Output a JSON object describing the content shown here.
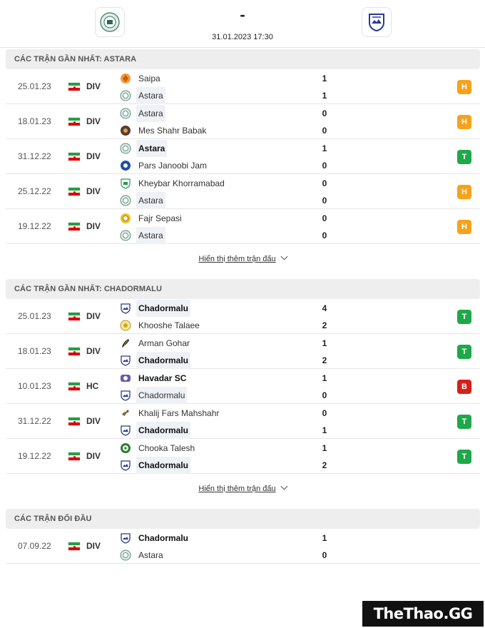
{
  "header": {
    "score": "-",
    "kickoff": "31.01.2023 17:30",
    "home_logo_icon": "astara-crest-icon",
    "away_logo_icon": "chadormalu-crest-icon"
  },
  "sections": [
    {
      "title": "CÁC TRẬN GẦN NHẤT: ASTARA",
      "matches": [
        {
          "date": "25.01.23",
          "comp": "DIV",
          "home": "Saipa",
          "home_score": "1",
          "away": "Astara",
          "away_score": "1",
          "result": "H"
        },
        {
          "date": "18.01.23",
          "comp": "DIV",
          "home": "Astara",
          "home_score": "0",
          "away": "Mes Shahr Babak",
          "away_score": "0",
          "result": "H"
        },
        {
          "date": "31.12.22",
          "comp": "DIV",
          "home": "Astara",
          "home_score": "1",
          "away": "Pars Janoobi Jam",
          "away_score": "0",
          "result": "T"
        },
        {
          "date": "25.12.22",
          "comp": "DIV",
          "home": "Kheybar Khorramabad",
          "home_score": "0",
          "away": "Astara",
          "away_score": "0",
          "result": "H"
        },
        {
          "date": "19.12.22",
          "comp": "DIV",
          "home": "Fajr Sepasi",
          "home_score": "0",
          "away": "Astara",
          "away_score": "0",
          "result": "H"
        }
      ],
      "more_label": "Hiển thị thêm trận đấu"
    },
    {
      "title": "CÁC TRẬN GẦN NHẤT: CHADORMALU",
      "matches": [
        {
          "date": "25.01.23",
          "comp": "DIV",
          "home": "Chadormalu",
          "home_score": "4",
          "away": "Khooshe Talaee",
          "away_score": "2",
          "result": "T"
        },
        {
          "date": "18.01.23",
          "comp": "DIV",
          "home": "Arman Gohar",
          "home_score": "1",
          "away": "Chadormalu",
          "away_score": "2",
          "result": "T"
        },
        {
          "date": "10.01.23",
          "comp": "HC",
          "home": "Havadar SC",
          "home_score": "1",
          "away": "Chadormalu",
          "away_score": "0",
          "result": "B"
        },
        {
          "date": "31.12.22",
          "comp": "DIV",
          "home": "Khalij Fars Mahshahr",
          "home_score": "0",
          "away": "Chadormalu",
          "away_score": "1",
          "result": "T"
        },
        {
          "date": "19.12.22",
          "comp": "DIV",
          "home": "Chooka Talesh",
          "home_score": "1",
          "away": "Chadormalu",
          "away_score": "2",
          "result": "T"
        }
      ],
      "more_label": "Hiển thị thêm trận đấu"
    },
    {
      "title": "CÁC TRẬN ĐỐI ĐẦU",
      "matches": [
        {
          "date": "07.09.22",
          "comp": "DIV",
          "home": "Chadormalu",
          "home_score": "1",
          "away": "Astara",
          "away_score": "0",
          "result": ""
        }
      ]
    }
  ],
  "colors": {
    "draw": "#f7a21b",
    "win": "#1ea84a",
    "loss": "#d91e18",
    "section_bg": "#eeeeee"
  },
  "watermark": "TheThao.GG"
}
